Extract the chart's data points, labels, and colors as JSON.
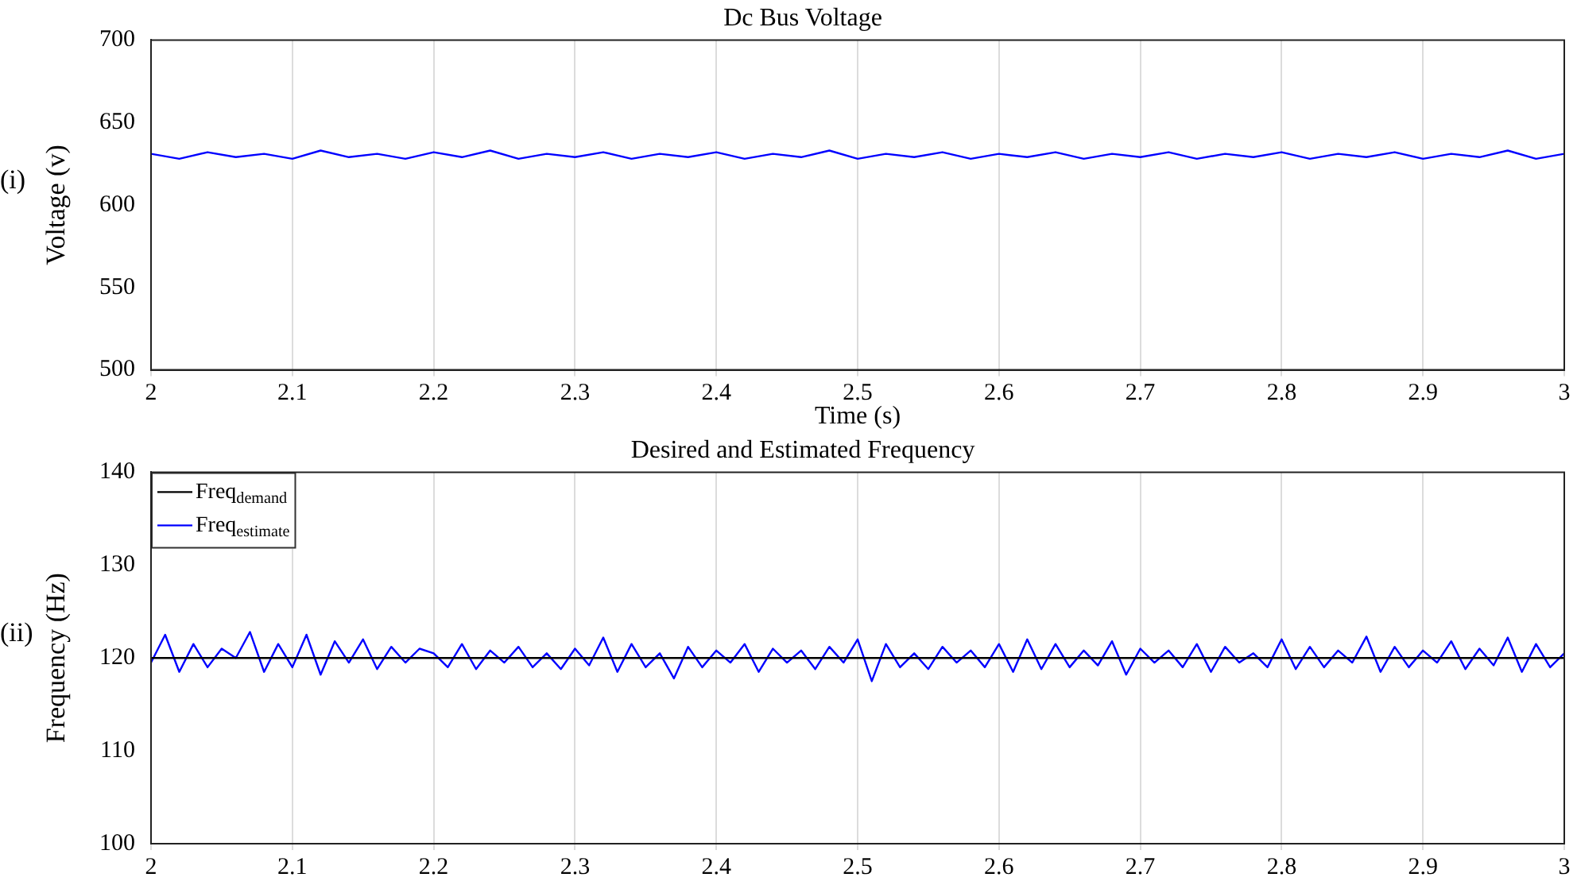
{
  "chart_data": [
    {
      "type": "line",
      "title": "Dc Bus Voltage",
      "xlabel": "Time (s)",
      "ylabel": "Voltage (v)",
      "annotations": [
        "(i)"
      ],
      "xlim": [
        2,
        3
      ],
      "xticks": [
        2,
        2.1,
        2.2,
        2.3,
        2.4,
        2.5,
        2.6,
        2.7,
        2.8,
        2.9,
        3
      ],
      "ylim": [
        500,
        700
      ],
      "yticks": [
        500,
        550,
        600,
        650,
        700
      ],
      "grid": "x",
      "x": [
        2,
        2.02,
        2.04,
        2.06,
        2.08,
        2.1,
        2.12,
        2.14,
        2.16,
        2.18,
        2.2,
        2.22,
        2.24,
        2.26,
        2.28,
        2.3,
        2.32,
        2.34,
        2.36,
        2.38,
        2.4,
        2.42,
        2.44,
        2.46,
        2.48,
        2.5,
        2.52,
        2.54,
        2.56,
        2.58,
        2.6,
        2.62,
        2.64,
        2.66,
        2.68,
        2.7,
        2.72,
        2.74,
        2.76,
        2.78,
        2.8,
        2.82,
        2.84,
        2.86,
        2.88,
        2.9,
        2.92,
        2.94,
        2.96,
        2.98,
        3
      ],
      "series": [
        {
          "color": "#0000ff",
          "values": [
            631,
            628,
            632,
            629,
            631,
            628,
            633,
            629,
            631,
            628,
            632,
            629,
            633,
            628,
            631,
            629,
            632,
            628,
            631,
            629,
            632,
            628,
            631,
            629,
            633,
            628,
            631,
            629,
            632,
            628,
            631,
            629,
            632,
            628,
            631,
            629,
            632,
            628,
            631,
            629,
            632,
            628,
            631,
            629,
            632,
            628,
            631,
            629,
            633,
            628,
            631
          ]
        }
      ]
    },
    {
      "type": "line",
      "title": "Desired and Estimated Frequency",
      "ylabel": "Frequency (Hz)",
      "annotations": [
        "(ii)"
      ],
      "legend": "top left",
      "xlim": [
        2,
        3
      ],
      "xticks": [
        2,
        2.1,
        2.2,
        2.3,
        2.4,
        2.5,
        2.6,
        2.7,
        2.8,
        2.9,
        3
      ],
      "ylim": [
        100,
        140
      ],
      "yticks": [
        100,
        110,
        120,
        130,
        140
      ],
      "grid": "x",
      "x": [
        2,
        2.01,
        2.02,
        2.03,
        2.04,
        2.05,
        2.06,
        2.07,
        2.08,
        2.09,
        2.1,
        2.11,
        2.12,
        2.13,
        2.14,
        2.15,
        2.16,
        2.17,
        2.18,
        2.19,
        2.2,
        2.21,
        2.22,
        2.23,
        2.24,
        2.25,
        2.26,
        2.27,
        2.28,
        2.29,
        2.3,
        2.31,
        2.32,
        2.33,
        2.34,
        2.35,
        2.36,
        2.37,
        2.38,
        2.39,
        2.4,
        2.41,
        2.42,
        2.43,
        2.44,
        2.45,
        2.46,
        2.47,
        2.48,
        2.49,
        2.5,
        2.51,
        2.52,
        2.53,
        2.54,
        2.55,
        2.56,
        2.57,
        2.58,
        2.59,
        2.6,
        2.61,
        2.62,
        2.63,
        2.64,
        2.65,
        2.66,
        2.67,
        2.68,
        2.69,
        2.7,
        2.71,
        2.72,
        2.73,
        2.74,
        2.75,
        2.76,
        2.77,
        2.78,
        2.79,
        2.8,
        2.81,
        2.82,
        2.83,
        2.84,
        2.85,
        2.86,
        2.87,
        2.88,
        2.89,
        2.9,
        2.91,
        2.92,
        2.93,
        2.94,
        2.95,
        2.96,
        2.97,
        2.98,
        2.99,
        3
      ],
      "series": [
        {
          "name": "Freq$_{demand}$",
          "color": "#000000",
          "x": [
            2,
            3
          ],
          "values": [
            120,
            120
          ]
        },
        {
          "name": "Freq$_{estimate}$",
          "color": "#0000ff",
          "values": [
            119.5,
            122.5,
            118.5,
            121.5,
            119,
            121,
            120,
            122.8,
            118.5,
            121.5,
            119,
            122.5,
            118.2,
            121.8,
            119.5,
            122,
            118.8,
            121.2,
            119.5,
            121,
            120.5,
            119,
            121.5,
            118.8,
            120.8,
            119.5,
            121.2,
            119,
            120.5,
            118.8,
            121,
            119.2,
            122.2,
            118.5,
            121.5,
            119,
            120.5,
            117.8,
            121.2,
            119,
            120.8,
            119.5,
            121.5,
            118.5,
            121,
            119.5,
            120.8,
            118.8,
            121.2,
            119.5,
            122,
            117.5,
            121.5,
            119,
            120.5,
            118.8,
            121.2,
            119.5,
            120.8,
            119,
            121.5,
            118.5,
            122,
            118.8,
            121.5,
            119,
            120.8,
            119.2,
            121.8,
            118.2,
            121,
            119.5,
            120.8,
            119,
            121.5,
            118.5,
            121.2,
            119.5,
            120.5,
            119,
            122,
            118.8,
            121.2,
            119,
            120.8,
            119.5,
            122.3,
            118.5,
            121.2,
            119,
            120.8,
            119.5,
            121.8,
            118.8,
            121,
            119.2,
            122.2,
            118.5,
            121.5,
            119,
            120.5
          ]
        }
      ]
    }
  ]
}
